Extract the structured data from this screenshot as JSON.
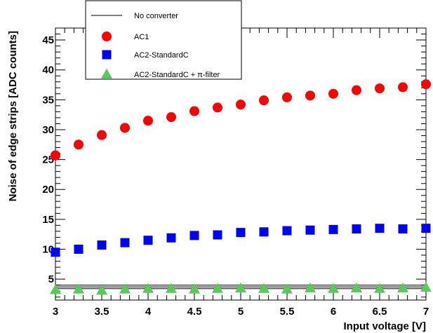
{
  "chart_data": {
    "type": "scatter",
    "xlabel": "Input voltage [V]",
    "ylabel": "Noise of edge strips [ADC counts]",
    "xlim": [
      3,
      7
    ],
    "ylim": [
      1.5,
      47
    ],
    "x_ticks": [
      "3",
      "3.5",
      "4",
      "4.5",
      "5",
      "5.5",
      "6",
      "6.5",
      "7"
    ],
    "y_ticks": [
      "5",
      "10",
      "15",
      "20",
      "25",
      "30",
      "35",
      "40",
      "45"
    ],
    "grid": false,
    "legend_position": "top-left",
    "x": [
      3,
      3.25,
      3.5,
      3.75,
      4,
      4.25,
      4.5,
      4.75,
      5,
      5.25,
      5.5,
      5.75,
      6,
      6.25,
      6.5,
      6.75,
      7
    ],
    "series": [
      {
        "name": "No converter",
        "marker": "line",
        "color": "#000000",
        "values": [
          3.7,
          3.7,
          3.7,
          3.7,
          3.7,
          3.7,
          3.7,
          3.7,
          3.7,
          3.7,
          3.7,
          3.7,
          3.7,
          3.7,
          3.7,
          3.7,
          3.7
        ]
      },
      {
        "name": "AC1",
        "marker": "circle",
        "color": "#ff0000",
        "values": [
          25.7,
          27.5,
          29.1,
          30.3,
          31.5,
          32.1,
          33.1,
          33.7,
          34.2,
          34.9,
          35.4,
          35.7,
          36.0,
          36.6,
          36.9,
          37.1,
          37.6
        ]
      },
      {
        "name": "AC2-StandardC",
        "marker": "square",
        "color": "#0000ff",
        "values": [
          9.5,
          10.0,
          10.7,
          11.1,
          11.5,
          11.9,
          12.3,
          12.4,
          12.8,
          12.9,
          13.1,
          13.2,
          13.3,
          13.4,
          13.5,
          13.4,
          13.5
        ]
      },
      {
        "name": "AC2-StandardC + π-filter",
        "marker": "triangle",
        "color": "#55cc55",
        "values": [
          3.2,
          3.3,
          3.1,
          3.3,
          3.4,
          3.4,
          3.3,
          3.4,
          3.5,
          3.4,
          3.3,
          3.5,
          3.4,
          3.5,
          3.4,
          3.5,
          3.6
        ]
      }
    ]
  }
}
